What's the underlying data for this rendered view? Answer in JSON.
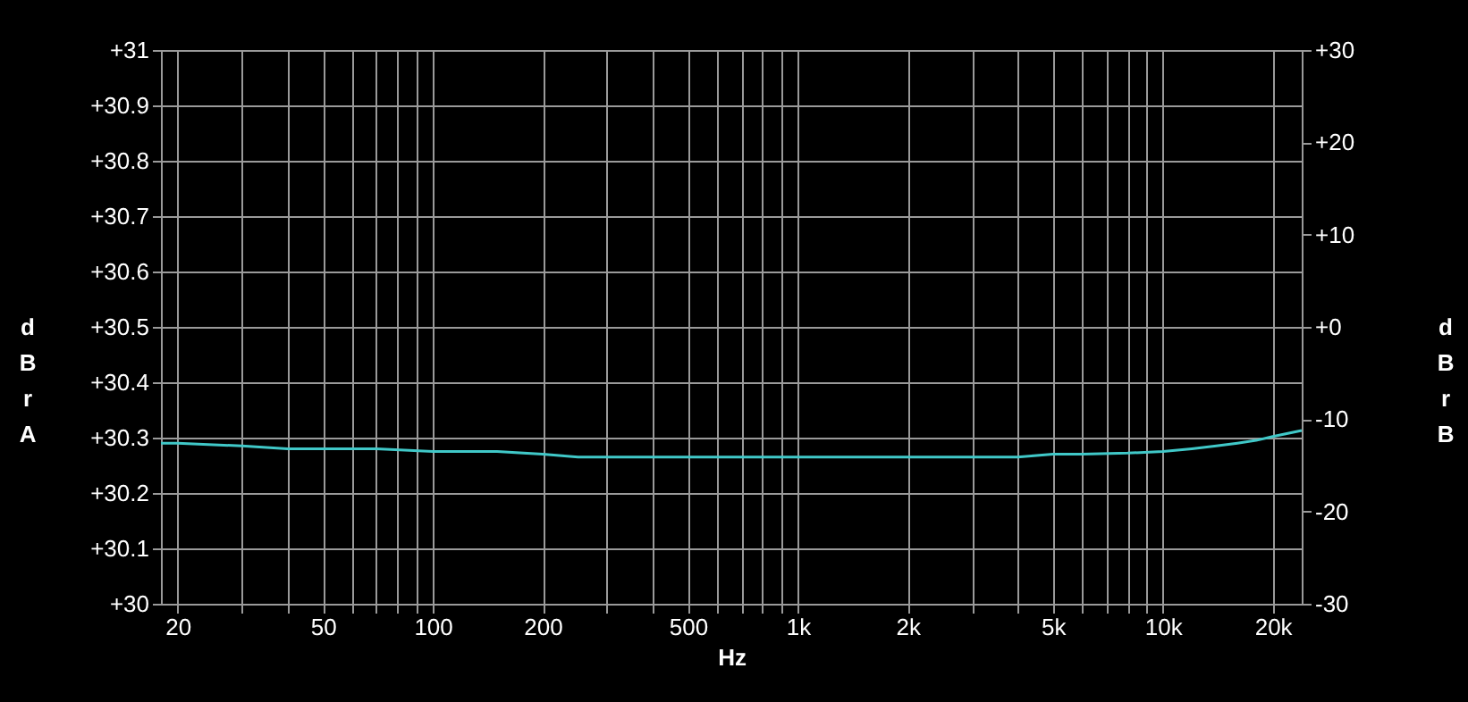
{
  "chart_data": {
    "type": "line",
    "xlabel": "Hz",
    "ylabel": "dBr A",
    "y2label": "dBr B",
    "log": "x",
    "grid": true,
    "marker": "none",
    "line_style": "solid",
    "xlim": [
      18,
      24000
    ],
    "ylim": [
      30,
      31
    ],
    "y2lim": [
      -30,
      30
    ],
    "xticks": [
      20,
      {
        "value": 30,
        "label": null
      },
      {
        "value": 40,
        "label": null
      },
      50,
      {
        "value": 60,
        "label": null
      },
      {
        "value": 70,
        "label": null
      },
      {
        "value": 80,
        "label": null
      },
      {
        "value": 90,
        "label": null
      },
      100,
      200,
      {
        "value": 300,
        "label": null
      },
      {
        "value": 400,
        "label": null
      },
      500,
      {
        "value": 600,
        "label": null
      },
      {
        "value": 700,
        "label": null
      },
      {
        "value": 800,
        "label": null
      },
      {
        "value": 900,
        "label": null
      },
      {
        "value": 1000,
        "label": "1k"
      },
      {
        "value": 2000,
        "label": "2k"
      },
      {
        "value": 3000,
        "label": null
      },
      {
        "value": 4000,
        "label": null
      },
      {
        "value": 5000,
        "label": "5k"
      },
      {
        "value": 6000,
        "label": null
      },
      {
        "value": 7000,
        "label": null
      },
      {
        "value": 8000,
        "label": null
      },
      {
        "value": 9000,
        "label": null
      },
      {
        "value": 10000,
        "label": "10k"
      },
      {
        "value": 20000,
        "label": "20k"
      }
    ],
    "yticks": [
      {
        "value": 30,
        "label": "+30"
      },
      {
        "value": 30.1,
        "label": "+30.1"
      },
      {
        "value": 30.2,
        "label": "+30.2"
      },
      {
        "value": 30.3,
        "label": "+30.3"
      },
      {
        "value": 30.4,
        "label": "+30.4"
      },
      {
        "value": 30.5,
        "label": "+30.5"
      },
      {
        "value": 30.6,
        "label": "+30.6"
      },
      {
        "value": 30.7,
        "label": "+30.7"
      },
      {
        "value": 30.8,
        "label": "+30.8"
      },
      {
        "value": 30.9,
        "label": "+30.9"
      },
      {
        "value": 31,
        "label": "+31"
      }
    ],
    "y2ticks": [
      {
        "value": 30,
        "label": "+30"
      },
      {
        "value": 20,
        "label": "+20"
      },
      {
        "value": 10,
        "label": "+10"
      },
      {
        "value": 0,
        "label": "+0"
      },
      -10,
      -20,
      -30
    ],
    "series": [
      {
        "color": "#40c8c8",
        "x": [
          18,
          20,
          30,
          40,
          50,
          70,
          100,
          150,
          200,
          250,
          300,
          500,
          1000,
          2000,
          3000,
          4000,
          5000,
          6000,
          8000,
          10000,
          12000,
          14000,
          16000,
          18000,
          20000,
          24000
        ],
        "values": [
          30.29,
          30.29,
          30.285,
          30.28,
          30.28,
          30.28,
          30.275,
          30.275,
          30.27,
          30.265,
          30.265,
          30.265,
          30.265,
          30.265,
          30.265,
          30.265,
          30.27,
          30.27,
          30.272,
          30.275,
          30.28,
          30.285,
          30.29,
          30.295,
          30.302,
          30.313
        ]
      }
    ]
  }
}
